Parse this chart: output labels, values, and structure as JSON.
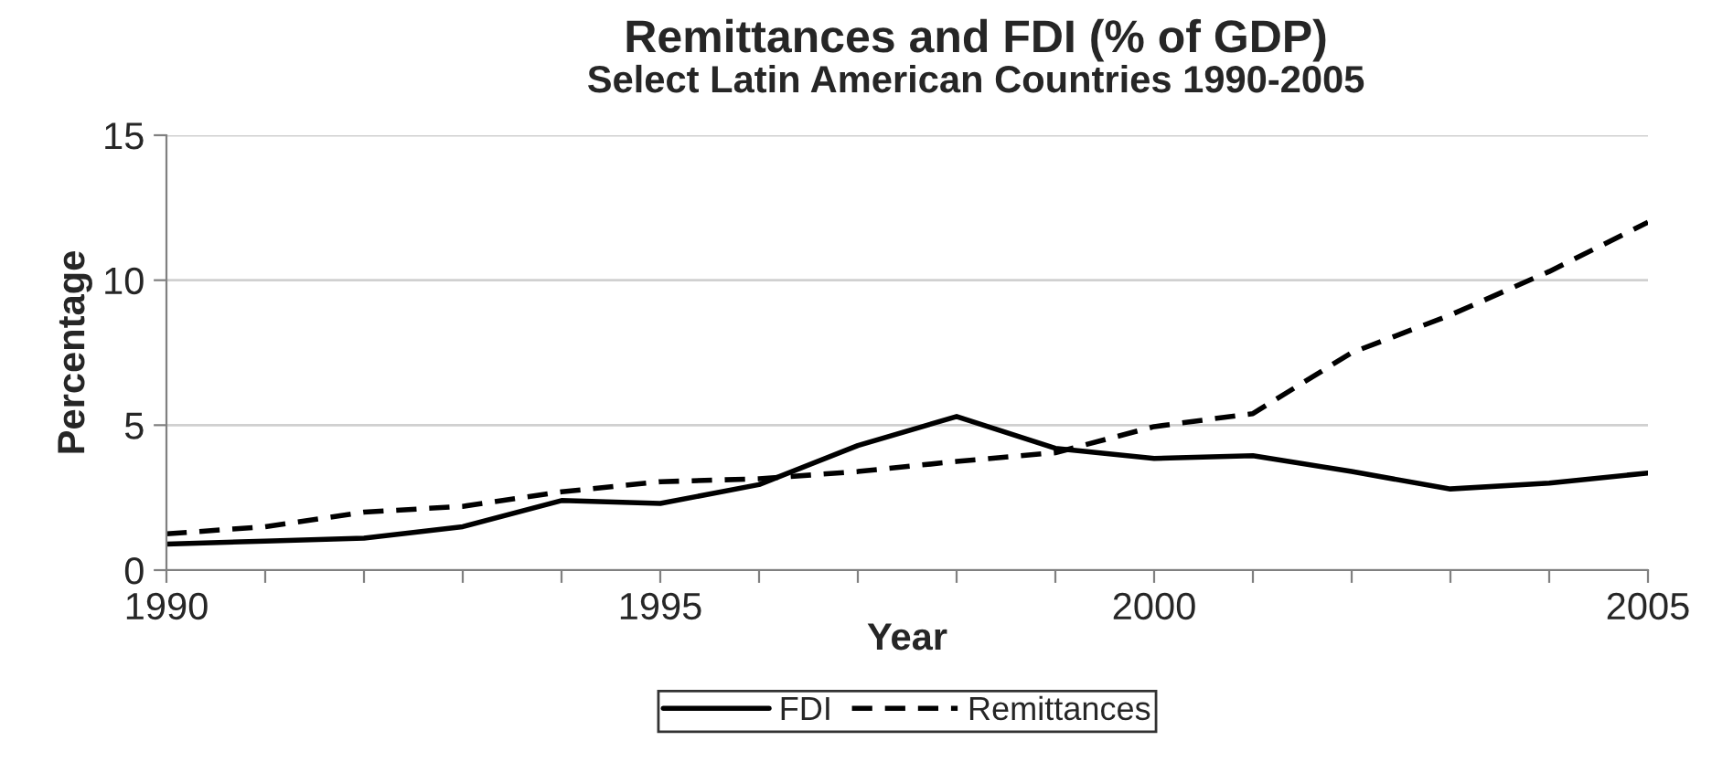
{
  "chart_data": {
    "type": "line",
    "title": "Remittances and FDI (% of GDP)",
    "subtitle": "Select Latin American Countries 1990-2005",
    "xlabel": "Year",
    "ylabel": "Percentage",
    "x": [
      1990,
      1991,
      1992,
      1993,
      1994,
      1995,
      1996,
      1997,
      1998,
      1999,
      2000,
      2001,
      2002,
      2003,
      2004,
      2005
    ],
    "series": [
      {
        "name": "FDI",
        "color": "#000000",
        "line_style": "solid",
        "values": [
          0.9,
          1.0,
          1.1,
          1.5,
          2.4,
          2.3,
          2.95,
          4.3,
          5.3,
          4.2,
          3.85,
          3.95,
          3.4,
          2.8,
          3.0,
          3.35
        ]
      },
      {
        "name": "Remittances",
        "color": "#000000",
        "line_style": "dashed",
        "values": [
          1.25,
          1.5,
          2.0,
          2.2,
          2.7,
          3.05,
          3.15,
          3.4,
          3.75,
          4.05,
          4.95,
          5.4,
          7.5,
          8.8,
          10.3,
          12.0
        ]
      }
    ],
    "xlim": [
      1990,
      2005
    ],
    "ylim": [
      0,
      15
    ],
    "xticks": [
      1990,
      {
        "value": 1991,
        "label": null
      },
      {
        "value": 1992,
        "label": null
      },
      {
        "value": 1993,
        "label": null
      },
      {
        "value": 1994,
        "label": null
      },
      1995,
      {
        "value": 1996,
        "label": null
      },
      {
        "value": 1997,
        "label": null
      },
      {
        "value": 1998,
        "label": null
      },
      {
        "value": 1999,
        "label": null
      },
      2000,
      {
        "value": 2001,
        "label": null
      },
      {
        "value": 2002,
        "label": null
      },
      {
        "value": 2003,
        "label": null
      },
      {
        "value": 2004,
        "label": null
      },
      2005
    ],
    "yticks": [
      0,
      5,
      10,
      15
    ],
    "grid": "y",
    "legend": "bottom",
    "marker": "none"
  }
}
